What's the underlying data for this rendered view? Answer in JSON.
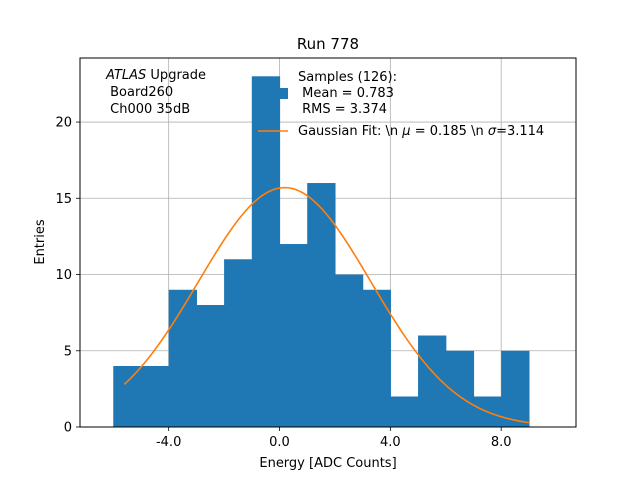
{
  "chart_data": {
    "type": "bar",
    "title": "Run 778",
    "xlabel": "Energy [ADC Counts]",
    "ylabel": "Entries",
    "xlim": [
      -7.2,
      10.7
    ],
    "ylim": [
      0,
      24.2
    ],
    "grid": true,
    "xticks": [
      -4,
      0,
      4,
      8
    ],
    "xtick_labels": [
      "-4.0",
      "0.0",
      "4.0",
      "8.0"
    ],
    "yticks": [
      0,
      5,
      10,
      15,
      20
    ],
    "ytick_labels": [
      "0",
      "5",
      "10",
      "15",
      "20"
    ],
    "histogram": {
      "name": "Samples (126):\n Mean = 0.783\n RMS = 3.374",
      "color": "#1f77b4",
      "bin_edges": [
        -6,
        -5,
        -4,
        -3,
        -2,
        -1,
        0,
        1,
        2,
        3,
        4,
        5,
        6,
        7,
        8,
        9
      ],
      "counts": [
        4,
        4,
        9,
        8,
        11,
        23,
        12,
        16,
        10,
        9,
        2,
        6,
        5,
        2,
        5
      ]
    },
    "fit": {
      "name": "Gaussian Fit: \\n $\\mu$ = 0.185 \\n $\\sigma$=3.114",
      "color": "#ff7f0e",
      "mu": 0.185,
      "sigma": 3.114,
      "amplitude": 15.7,
      "x_range": [
        -5.6,
        9.0
      ]
    },
    "annotation": {
      "experiment": "ATLAS",
      "lines": [
        "Upgrade",
        "Board260",
        "Ch000 35dB"
      ]
    },
    "legend": {
      "position": "top-center",
      "entries": [
        {
          "kind": "patch",
          "lines": [
            "Samples (126):",
            " Mean = 0.783",
            " RMS = 3.374"
          ]
        },
        {
          "kind": "line",
          "label_pre": "Gaussian Fit: \\n ",
          "mu_symbol": "μ",
          "label_mid": " = 0.185 \\n ",
          "sigma_symbol": "σ",
          "label_post": "=3.114"
        }
      ]
    }
  }
}
